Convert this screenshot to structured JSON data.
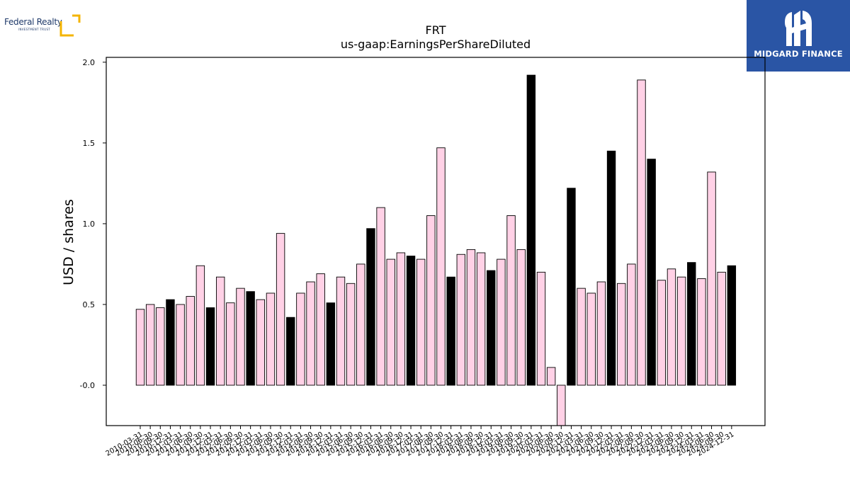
{
  "logos": {
    "left_name": "Federal Realty",
    "left_sub": "INVESTMENT TRUST",
    "right_name": "MIDGARD FINANCE"
  },
  "colors": {
    "pink": "#ffd1e6",
    "black": "#000000"
  },
  "chart_data": {
    "type": "bar",
    "title": "FRT",
    "subtitle": "us-gaap:EarningsPerShareDiluted",
    "xlabel": "",
    "ylabel": "USD / shares",
    "ylim": [
      -0.25,
      2.03
    ],
    "yticks": [
      "-0.0",
      "0.5",
      "1.0",
      "1.5",
      "2.0"
    ],
    "grid": false,
    "categories": [
      "2010-03-31",
      "2010-06-30",
      "2010-09-30",
      "2010-12-31",
      "2011-03-31",
      "2011-06-30",
      "2011-09-30",
      "2011-12-31",
      "2012-03-31",
      "2012-06-30",
      "2012-09-30",
      "2012-12-31",
      "2013-03-31",
      "2013-06-30",
      "2013-09-30",
      "2013-12-31",
      "2014-03-31",
      "2014-06-30",
      "2014-09-30",
      "2014-12-31",
      "2015-03-31",
      "2015-06-30",
      "2015-09-30",
      "2015-12-31",
      "2016-03-31",
      "2016-06-30",
      "2016-09-30",
      "2016-12-31",
      "2017-03-31",
      "2017-06-30",
      "2017-09-30",
      "2017-12-31",
      "2018-03-31",
      "2018-06-30",
      "2018-09-30",
      "2018-12-31",
      "2019-03-31",
      "2019-06-30",
      "2019-09-30",
      "2019-12-31",
      "2020-03-31",
      "2020-06-30",
      "2020-09-30",
      "2020-12-31",
      "2021-03-31",
      "2021-06-30",
      "2021-09-30",
      "2021-12-31",
      "2022-03-31",
      "2022-06-30",
      "2022-09-30",
      "2022-12-31",
      "2023-03-31",
      "2023-06-30",
      "2023-09-30",
      "2023-12-31",
      "2024-03-31",
      "2024-06-30",
      "2024-09-30",
      "2024-12-31"
    ],
    "values": [
      0.47,
      0.5,
      0.48,
      0.53,
      0.5,
      0.55,
      0.74,
      0.48,
      0.67,
      0.51,
      0.6,
      0.58,
      0.53,
      0.57,
      0.94,
      0.42,
      0.57,
      0.64,
      0.69,
      0.51,
      0.67,
      0.63,
      0.75,
      0.97,
      1.1,
      0.78,
      0.82,
      0.8,
      0.78,
      1.05,
      1.47,
      0.67,
      0.81,
      0.84,
      0.82,
      0.71,
      0.78,
      1.05,
      0.84,
      1.92,
      0.7,
      0.11,
      -0.25,
      1.22,
      0.6,
      0.57,
      0.64,
      1.45,
      0.63,
      0.75,
      1.89,
      1.4,
      0.65,
      0.72,
      0.67,
      0.76,
      0.66,
      1.32,
      0.7,
      0.74
    ],
    "highlight": [
      false,
      false,
      false,
      true,
      false,
      false,
      false,
      true,
      false,
      false,
      false,
      true,
      false,
      false,
      false,
      true,
      false,
      false,
      false,
      true,
      false,
      false,
      false,
      true,
      false,
      false,
      false,
      true,
      false,
      false,
      false,
      true,
      false,
      false,
      false,
      true,
      false,
      false,
      false,
      true,
      false,
      false,
      false,
      true,
      false,
      false,
      false,
      true,
      false,
      false,
      false,
      true,
      false,
      false,
      false,
      true,
      false,
      false,
      false,
      true
    ]
  }
}
